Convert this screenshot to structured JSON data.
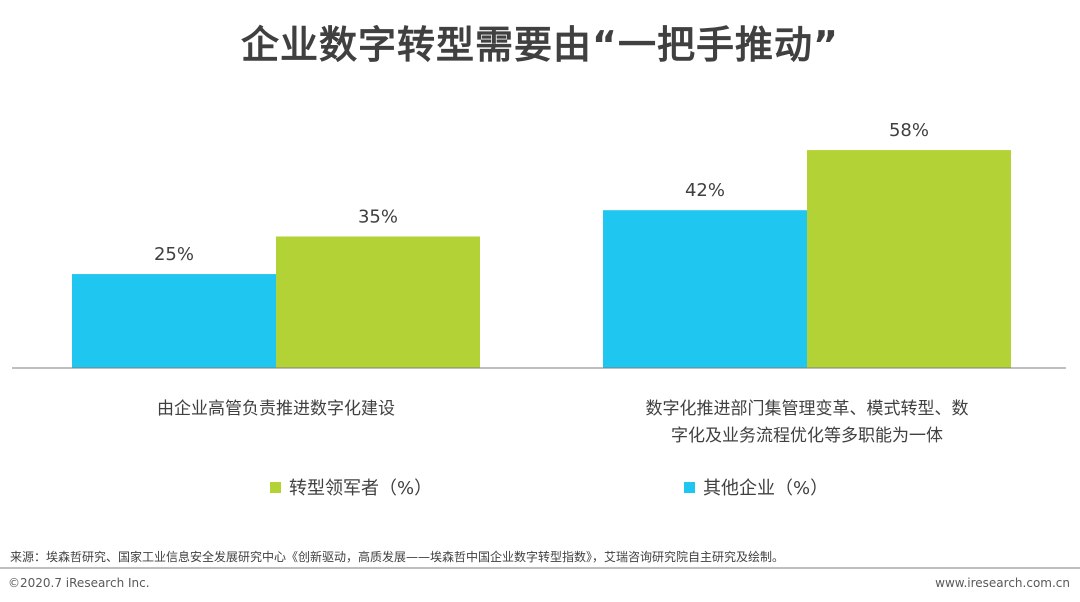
{
  "title": "企业数字转型需要由“一把手推动”",
  "colors": {
    "leaders": "#b2d235",
    "others": "#1ec6f0",
    "axis": "#7f7f7f",
    "text": "#404040"
  },
  "legend": {
    "leaders": "转型领军者（%）",
    "others": "其他企业（%）"
  },
  "chart_data": {
    "type": "bar",
    "categories": [
      [
        "由企业高管负责推进数字化建设"
      ],
      [
        "数字化推进部门集管理变革、模式转型、数",
        "字化及业务流程优化等多职能为一体"
      ]
    ],
    "series": [
      {
        "name": "其他企业（%）",
        "values": [
          25,
          42
        ],
        "labels": [
          "25%",
          "42%"
        ],
        "color": "#1ec6f0"
      },
      {
        "name": "转型领军者（%）",
        "values": [
          35,
          58
        ],
        "labels": [
          "35%",
          "58%"
        ],
        "color": "#b2d235"
      }
    ],
    "ylim": [
      0,
      70
    ],
    "legend_position": "bottom",
    "grid": false
  },
  "source": "来源：埃森哲研究、国家工业信息安全发展研究中心《创新驱动，高质发展——埃森哲中国企业数字转型指数》，艾瑞咨询研究院自主研究及绘制。",
  "footer": {
    "copyright": "©2020.7 iResearch Inc.",
    "site": "www.iresearch.com.cn"
  }
}
